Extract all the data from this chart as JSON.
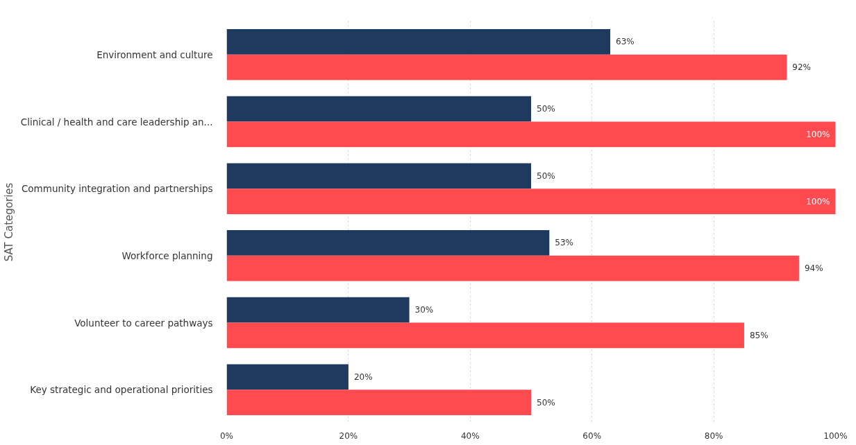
{
  "chart_data": {
    "type": "bar",
    "orientation": "horizontal",
    "ylabel": "SAT Categories",
    "categories": [
      "Environment and culture",
      "Clinical / health and care leadership an...",
      "Community integration and partnerships",
      "Workforce planning",
      "Volunteer to career pathways",
      "Key strategic and operational priorities"
    ],
    "series": [
      {
        "color": "#1e3a5f",
        "values": [
          63,
          50,
          50,
          53,
          30,
          20
        ],
        "value_labels": [
          "63%",
          "50%",
          "50%",
          "53%",
          "30%",
          "20%"
        ]
      },
      {
        "color": "#ff4a50",
        "values": [
          92,
          100,
          100,
          94,
          85,
          50
        ],
        "value_labels": [
          "92%",
          "100%",
          "100%",
          "94%",
          "85%",
          "50%"
        ]
      }
    ],
    "xlim": [
      0,
      100
    ],
    "xticks": [
      {
        "value": 0,
        "label": "0%"
      },
      {
        "value": 20,
        "label": "20%"
      },
      {
        "value": 40,
        "label": "40%"
      },
      {
        "value": 60,
        "label": "60%"
      },
      {
        "value": 80,
        "label": "80%"
      },
      {
        "value": 100,
        "label": "100%"
      }
    ],
    "grid": "x"
  }
}
